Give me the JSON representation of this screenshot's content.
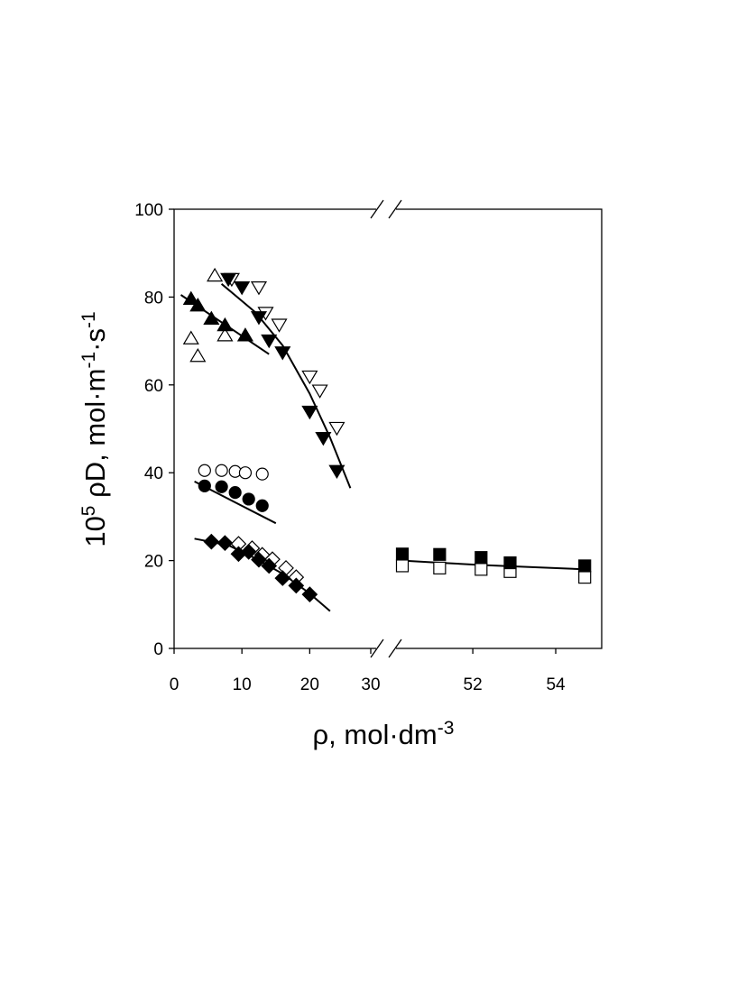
{
  "chart_data": {
    "type": "scatter",
    "title": "",
    "xlabel": {
      "main": "ρ, mol·dm",
      "sup": "-3"
    },
    "ylabel": {
      "pre": "10",
      "pre_sup": "5",
      "main": " ρD,  mol·m",
      "sup1": "-1",
      "mid": "·s",
      "sup2": "-1"
    },
    "ylim": [
      0,
      100
    ],
    "y_ticks": [
      "0",
      "20",
      "40",
      "60",
      "80",
      "100"
    ],
    "x_ticks": [
      "0",
      "10",
      "20",
      "30",
      "52",
      "54"
    ],
    "x_axis_broken": true,
    "x_segments": [
      {
        "range": [
          0,
          29
        ],
        "tick_values": [
          0,
          10,
          20
        ]
      },
      {
        "range": [
          50.3,
          55.0
        ],
        "tick_values": [
          52,
          54
        ]
      }
    ],
    "break_marker": "//",
    "legend": "none",
    "grid": false,
    "series": [
      {
        "marker": "triangle-up",
        "filled": false,
        "points": [
          [
            2.5,
            70.5
          ],
          [
            3.5,
            66.5
          ],
          [
            6.0,
            84.8
          ],
          [
            7.5,
            71.2
          ]
        ]
      },
      {
        "marker": "triangle-up",
        "filled": true,
        "points": [
          [
            2.5,
            79.5
          ],
          [
            3.5,
            78.0
          ],
          [
            5.5,
            75.0
          ],
          [
            7.5,
            73.5
          ],
          [
            10.5,
            71.2
          ]
        ]
      },
      {
        "marker": "triangle-down",
        "filled": false,
        "points": [
          [
            8.5,
            84.2
          ],
          [
            12.5,
            82.3
          ],
          [
            13.5,
            76.5
          ],
          [
            15.5,
            73.8
          ],
          [
            20.0,
            62.0
          ],
          [
            21.5,
            58.8
          ],
          [
            24.0,
            50.3
          ]
        ]
      },
      {
        "marker": "triangle-down",
        "filled": true,
        "points": [
          [
            8.0,
            84.2
          ],
          [
            10.0,
            82.3
          ],
          [
            12.5,
            75.5
          ],
          [
            14.0,
            70.2
          ],
          [
            16.0,
            67.5
          ],
          [
            20.0,
            54.0
          ],
          [
            22.0,
            48.0
          ],
          [
            24.0,
            40.5
          ]
        ]
      },
      {
        "marker": "circle",
        "filled": false,
        "points": [
          [
            4.5,
            40.5
          ],
          [
            7.0,
            40.5
          ],
          [
            9.0,
            40.3
          ],
          [
            10.5,
            40.0
          ],
          [
            13.0,
            39.7
          ]
        ]
      },
      {
        "marker": "circle",
        "filled": true,
        "points": [
          [
            4.5,
            37.0
          ],
          [
            7.0,
            36.8
          ],
          [
            9.0,
            35.5
          ],
          [
            11.0,
            34.0
          ],
          [
            13.0,
            32.5
          ]
        ]
      },
      {
        "marker": "diamond",
        "filled": false,
        "points": [
          [
            9.5,
            23.8
          ],
          [
            11.5,
            22.8
          ],
          [
            13.0,
            21.3
          ],
          [
            14.5,
            20.3
          ],
          [
            16.5,
            18.3
          ],
          [
            18.0,
            16.2
          ]
        ]
      },
      {
        "marker": "diamond",
        "filled": true,
        "points": [
          [
            5.5,
            24.3
          ],
          [
            7.5,
            24.0
          ],
          [
            9.5,
            21.5
          ],
          [
            11.0,
            22.0
          ],
          [
            12.5,
            20.2
          ],
          [
            14.0,
            18.8
          ],
          [
            16.0,
            16.0
          ],
          [
            18.0,
            14.3
          ],
          [
            20.0,
            12.3
          ]
        ]
      },
      {
        "marker": "square",
        "filled": false,
        "points": [
          [
            50.3,
            18.8
          ],
          [
            51.2,
            18.3
          ],
          [
            52.2,
            18.0
          ],
          [
            52.9,
            17.5
          ],
          [
            54.7,
            16.2
          ]
        ]
      },
      {
        "marker": "square",
        "filled": true,
        "points": [
          [
            50.3,
            21.5
          ],
          [
            51.2,
            21.4
          ],
          [
            52.2,
            20.7
          ],
          [
            52.9,
            19.5
          ],
          [
            54.7,
            18.8
          ]
        ]
      }
    ],
    "fit_lines": [
      {
        "points": [
          [
            1.0,
            80.5
          ],
          [
            14.0,
            67.0
          ]
        ]
      },
      {
        "points": [
          [
            7.0,
            83.0
          ],
          [
            12.0,
            76.5
          ],
          [
            16.0,
            69.0
          ],
          [
            20.0,
            58.0
          ],
          [
            23.0,
            48.0
          ],
          [
            26.0,
            36.5
          ]
        ]
      },
      {
        "points": [
          [
            3.0,
            38.0
          ],
          [
            15.0,
            28.5
          ]
        ]
      },
      {
        "points": [
          [
            3.0,
            25.0
          ],
          [
            8.0,
            23.5
          ],
          [
            12.0,
            20.5
          ],
          [
            16.0,
            17.0
          ],
          [
            20.0,
            12.5
          ],
          [
            23.0,
            8.5
          ]
        ]
      },
      {
        "points": [
          [
            50.3,
            20.0
          ],
          [
            51.2,
            19.5
          ],
          [
            52.2,
            19.0
          ],
          [
            52.9,
            18.7
          ],
          [
            54.7,
            18.0
          ]
        ]
      }
    ]
  }
}
